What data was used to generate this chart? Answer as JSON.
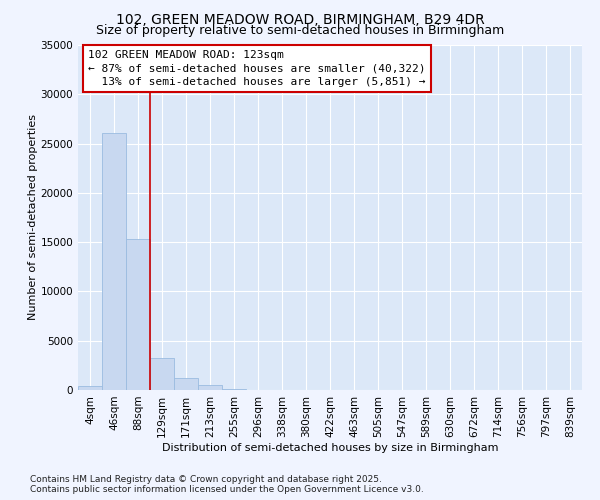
{
  "title_line1": "102, GREEN MEADOW ROAD, BIRMINGHAM, B29 4DR",
  "title_line2": "Size of property relative to semi-detached houses in Birmingham",
  "xlabel": "Distribution of semi-detached houses by size in Birmingham",
  "ylabel": "Number of semi-detached properties",
  "bin_labels": [
    "4sqm",
    "46sqm",
    "88sqm",
    "129sqm",
    "171sqm",
    "213sqm",
    "255sqm",
    "296sqm",
    "338sqm",
    "380sqm",
    "422sqm",
    "463sqm",
    "505sqm",
    "547sqm",
    "589sqm",
    "630sqm",
    "672sqm",
    "714sqm",
    "756sqm",
    "797sqm",
    "839sqm"
  ],
  "bar_values": [
    450,
    26100,
    15300,
    3200,
    1200,
    500,
    100,
    0,
    0,
    0,
    0,
    0,
    0,
    0,
    0,
    0,
    0,
    0,
    0,
    0,
    0
  ],
  "bar_color": "#c8d8f0",
  "bar_edgecolor": "#9bbce0",
  "background_color": "#f0f4ff",
  "plot_bg_color": "#dce8f8",
  "grid_color": "#ffffff",
  "annotation_line1": "102 GREEN MEADOW ROAD: 123sqm",
  "annotation_line2": "← 87% of semi-detached houses are smaller (40,322)",
  "annotation_line3": "  13% of semi-detached houses are larger (5,851) →",
  "annotation_box_color": "#ffffff",
  "annotation_box_edgecolor": "#cc0000",
  "red_line_color": "#cc0000",
  "ylim": [
    0,
    35000
  ],
  "yticks": [
    0,
    5000,
    10000,
    15000,
    20000,
    25000,
    30000,
    35000
  ],
  "title_fontsize": 10,
  "subtitle_fontsize": 9,
  "axis_label_fontsize": 8,
  "tick_fontsize": 7.5,
  "annotation_fontsize": 8,
  "footer_fontsize": 6.5,
  "footer_line1": "Contains HM Land Registry data © Crown copyright and database right 2025.",
  "footer_line2": "Contains public sector information licensed under the Open Government Licence v3.0."
}
